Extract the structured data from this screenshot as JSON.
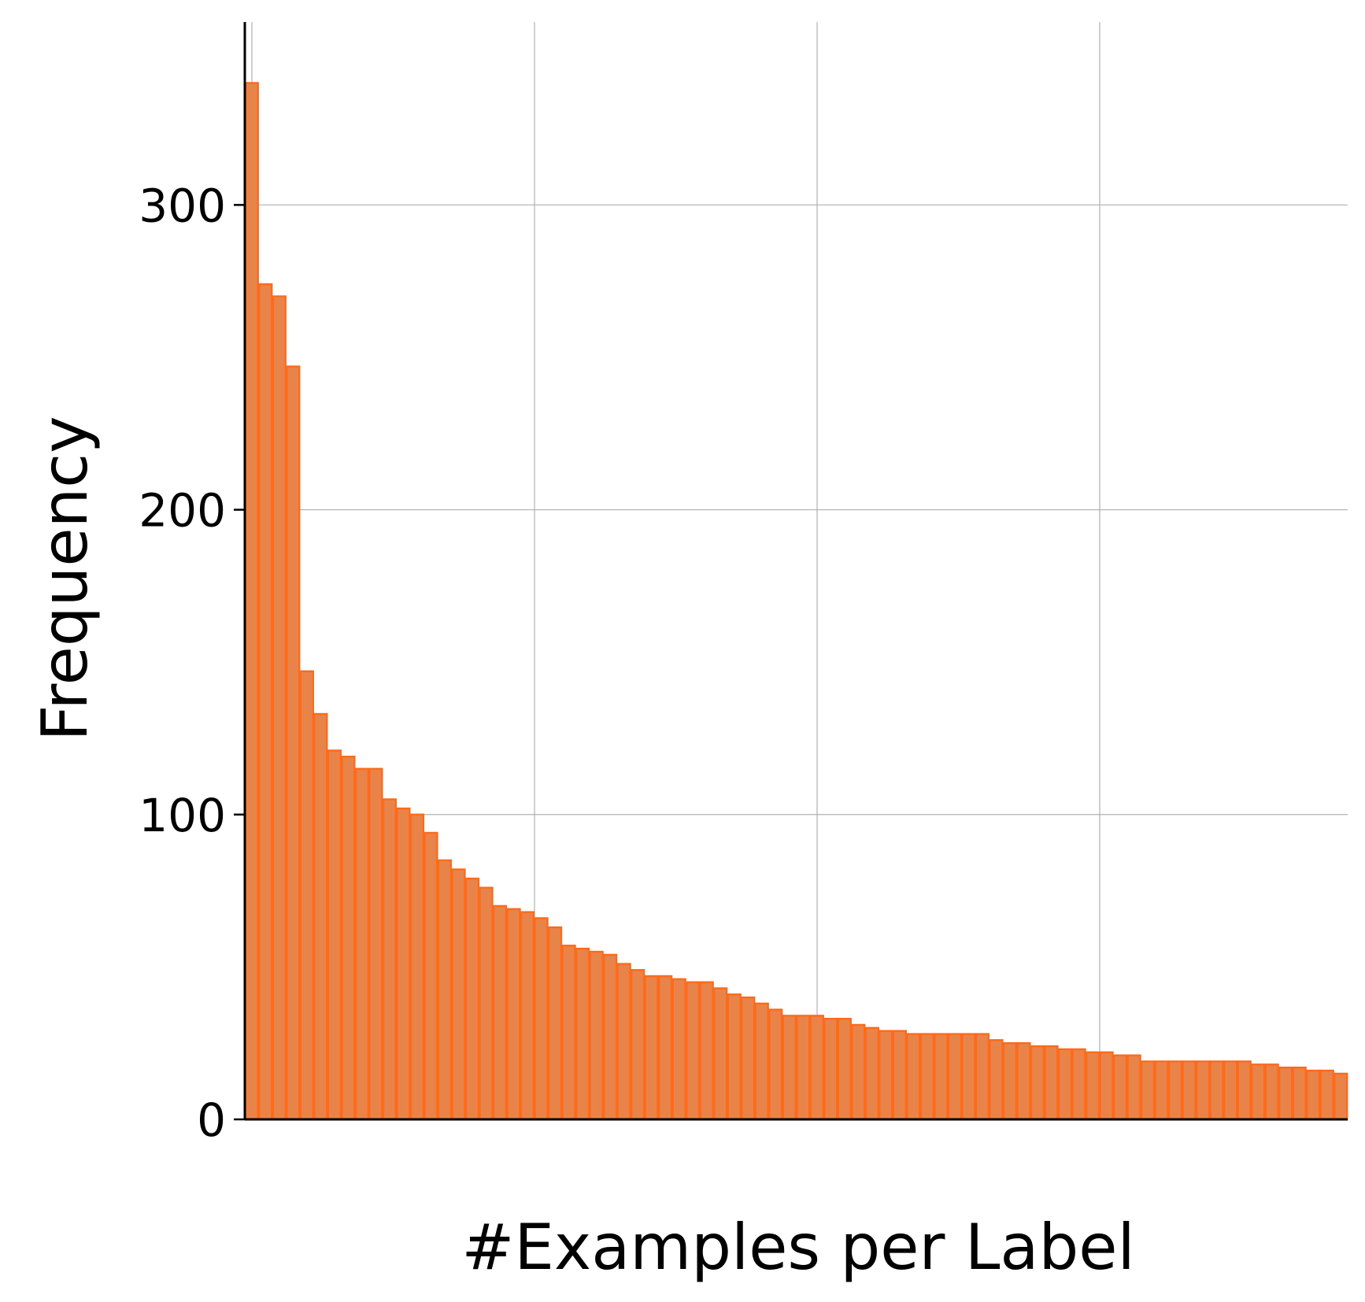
{
  "chart_data": {
    "type": "bar",
    "title": "",
    "xlabel": "#Examples per Label",
    "ylabel": "Frequency",
    "ylim": [
      0,
      360
    ],
    "yticks": [
      0,
      100,
      200,
      300
    ],
    "x_tick_labels": [],
    "grid": true,
    "legend": "none",
    "colors": {
      "bar_fill": "#e8844a",
      "bar_edge": "#ff6a1a"
    },
    "values": [
      340,
      274,
      270,
      247,
      147,
      133,
      121,
      119,
      115,
      115,
      105,
      102,
      100,
      94,
      85,
      82,
      79,
      76,
      70,
      69,
      68,
      66,
      63,
      57,
      56,
      55,
      54,
      51,
      49,
      47,
      47,
      46,
      45,
      45,
      43,
      41,
      40,
      38,
      36,
      34,
      34,
      34,
      33,
      33,
      31,
      30,
      29,
      29,
      28,
      28,
      28,
      28,
      28,
      28,
      26,
      25,
      25,
      24,
      24,
      23,
      23,
      22,
      22,
      21,
      21,
      19,
      19,
      19,
      19,
      19,
      19,
      19,
      19,
      18,
      18,
      17,
      17,
      16,
      16,
      15
    ]
  }
}
